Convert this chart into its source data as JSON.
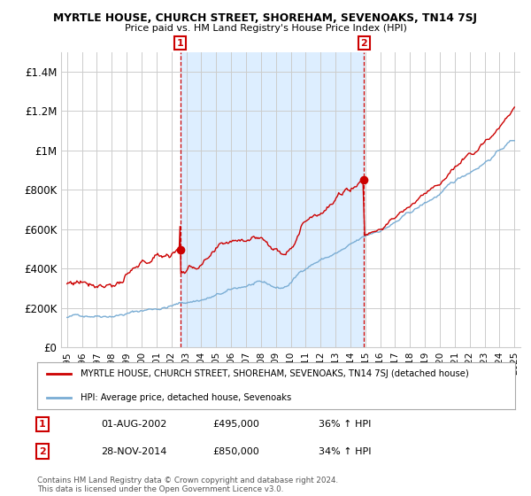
{
  "title": "MYRTLE HOUSE, CHURCH STREET, SHOREHAM, SEVENOAKS, TN14 7SJ",
  "subtitle": "Price paid vs. HM Land Registry's House Price Index (HPI)",
  "ylim": [
    0,
    1500000
  ],
  "yticks": [
    0,
    200000,
    400000,
    600000,
    800000,
    1000000,
    1200000,
    1400000
  ],
  "ytick_labels": [
    "£0",
    "£200K",
    "£400K",
    "£600K",
    "£800K",
    "£1M",
    "£1.2M",
    "£1.4M"
  ],
  "xlim_start": 1994.6,
  "xlim_end": 2025.4,
  "sale1_x": 2002.583,
  "sale1_y": 495000,
  "sale1_label": "1",
  "sale1_date": "01-AUG-2002",
  "sale1_price": "£495,000",
  "sale1_hpi": "36% ↑ HPI",
  "sale2_x": 2014.917,
  "sale2_y": 850000,
  "sale2_label": "2",
  "sale2_date": "28-NOV-2014",
  "sale2_price": "£850,000",
  "sale2_hpi": "34% ↑ HPI",
  "hpi_color": "#7aadd4",
  "sale_color": "#cc0000",
  "vline_color": "#cc0000",
  "shade_color": "#ddeeff",
  "background_color": "#ffffff",
  "grid_color": "#cccccc",
  "legend_label_red": "MYRTLE HOUSE, CHURCH STREET, SHOREHAM, SEVENOAKS, TN14 7SJ (detached house)",
  "legend_label_blue": "HPI: Average price, detached house, Sevenoaks",
  "footer": "Contains HM Land Registry data © Crown copyright and database right 2024.\nThis data is licensed under the Open Government Licence v3.0."
}
